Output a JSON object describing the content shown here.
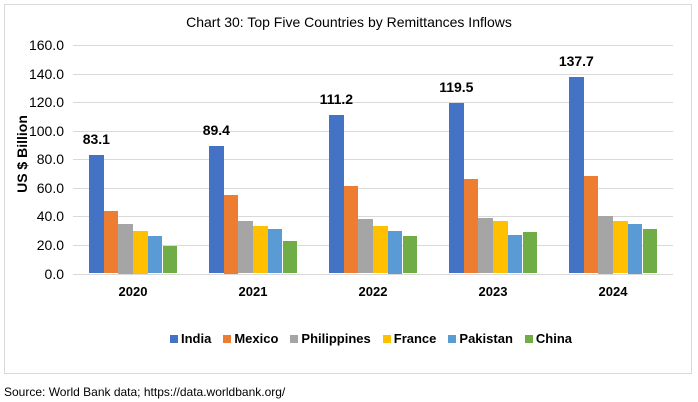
{
  "chart_data": {
    "type": "bar",
    "title": "Chart 30: Top Five Countries by Remittances Inflows",
    "xlabel": "",
    "ylabel": "US $ Billion",
    "ylim": [
      0,
      160
    ],
    "yticks": [
      "0.0",
      "20.0",
      "40.0",
      "60.0",
      "80.0",
      "100.0",
      "120.0",
      "140.0",
      "160.0"
    ],
    "grid": true,
    "legend_position": "bottom",
    "categories": [
      "2020",
      "2021",
      "2022",
      "2023",
      "2024"
    ],
    "series": [
      {
        "name": "India",
        "color": "#4472c4",
        "values": [
          83.1,
          89.4,
          111.2,
          119.5,
          137.7
        ]
      },
      {
        "name": "Mexico",
        "color": "#ed7d31",
        "values": [
          44,
          55,
          61,
          66,
          68
        ]
      },
      {
        "name": "Philippines",
        "color": "#a5a5a5",
        "values": [
          35,
          37,
          38,
          39,
          40
        ]
      },
      {
        "name": "France",
        "color": "#ffc000",
        "values": [
          30,
          33,
          33,
          37,
          37
        ]
      },
      {
        "name": "Pakistan",
        "color": "#5b9bd5",
        "values": [
          26,
          31,
          30,
          27,
          35
        ]
      },
      {
        "name": "China",
        "color": "#70ad47",
        "values": [
          19,
          23,
          26,
          29,
          31
        ]
      }
    ],
    "data_labels": {
      "series": "India",
      "values": [
        "83.1",
        "89.4",
        "111.2",
        "119.5",
        "137.7"
      ]
    }
  },
  "source": "Source: World Bank data; https://data.worldbank.org/"
}
